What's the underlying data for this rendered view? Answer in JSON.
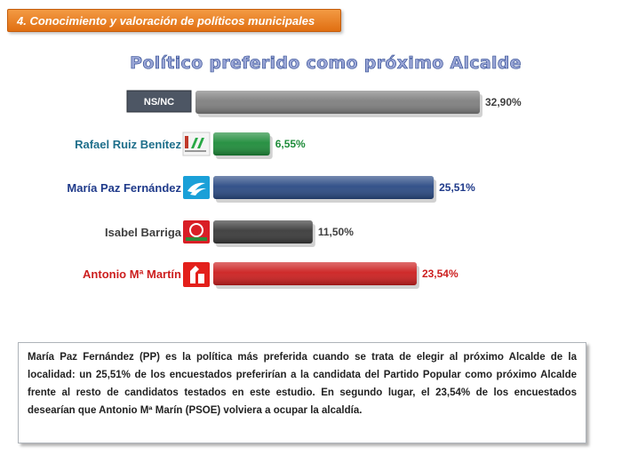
{
  "section_header": "4. Conocimiento y valoración de políticos municipales",
  "chart_data": {
    "type": "bar",
    "orientation": "horizontal",
    "title": "Político preferido como próximo Alcalde",
    "categories": [
      "NS/NC",
      "Rafael Ruiz Benítez",
      "María Paz Fernández",
      "Isabel Barriga",
      "Antonio Mª Martín"
    ],
    "values": [
      32.9,
      6.55,
      25.51,
      11.5,
      23.54
    ],
    "value_labels": [
      "32,90%",
      "6,55%",
      "25,51%",
      "11,50%",
      "23,54%"
    ],
    "bar_colors": [
      "#7f7f7f",
      "#1e8c3a",
      "#2a4a84",
      "#3a3a3a",
      "#cc1f1f"
    ],
    "label_colors": [
      "#ffffff",
      "#1f6f8b",
      "#1f3a8a",
      "#404040",
      "#cc1f1f"
    ],
    "party_icons": [
      "",
      "iu-logo-icon",
      "pp-logo-icon",
      "andalucista-logo-icon",
      "psoe-logo-icon"
    ],
    "xlim": [
      0,
      35
    ],
    "grid": false,
    "legend": "none"
  },
  "summary": "María Paz Fernández (PP) es la política más preferida cuando se trata de elegir al próximo Alcalde de la localidad: un 25,51% de los encuestados preferirían a la candidata del Partido Popular como próximo Alcalde frente al resto de candidatos testados en este estudio. En segundo lugar, el 23,54% de los encuestados desearían que Antonio Mª Marín (PSOE) volviera a ocupar la alcaldía."
}
